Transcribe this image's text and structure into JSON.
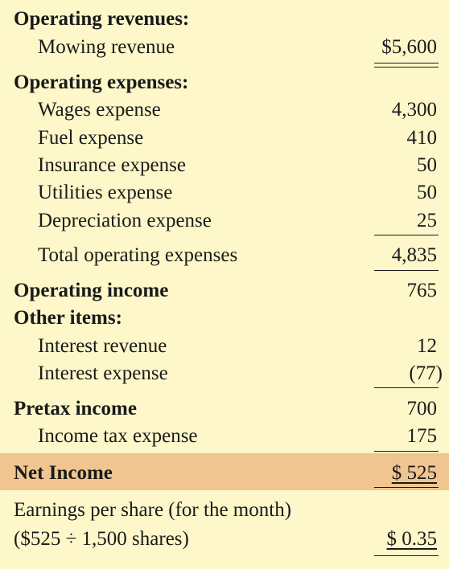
{
  "operating_revenues": {
    "heading": "Operating revenues:",
    "mowing_revenue": {
      "label": "Mowing revenue",
      "amount": "$5,600"
    }
  },
  "operating_expenses": {
    "heading": "Operating expenses:",
    "items": [
      {
        "label": "Wages expense",
        "amount": "4,300"
      },
      {
        "label": "Fuel expense",
        "amount": "410"
      },
      {
        "label": "Insurance expense",
        "amount": "50"
      },
      {
        "label": "Utilities expense",
        "amount": "50"
      },
      {
        "label": "Depreciation expense",
        "amount": "25"
      }
    ],
    "total": {
      "label": "Total operating expenses",
      "amount": "4,835"
    }
  },
  "operating_income": {
    "label": "Operating income",
    "amount": "765"
  },
  "other_items": {
    "heading": "Other items:",
    "items": [
      {
        "label": "Interest revenue",
        "amount": "12"
      },
      {
        "label": "Interest expense",
        "amount": "(77)"
      }
    ]
  },
  "pretax_income": {
    "label": "Pretax income",
    "amount": "700"
  },
  "income_tax": {
    "label": "Income tax expense",
    "amount": "175"
  },
  "net_income": {
    "label": "Net Income",
    "amount": "$ 525"
  },
  "eps": {
    "label_line1": "Earnings per share (for the month)",
    "label_line2": "($525 ÷ 1,500 shares)",
    "amount": "$ 0.35"
  },
  "colors": {
    "background": "#fdf7c9",
    "net_income_band": "#f1c58f",
    "text": "#1a1a1a"
  }
}
